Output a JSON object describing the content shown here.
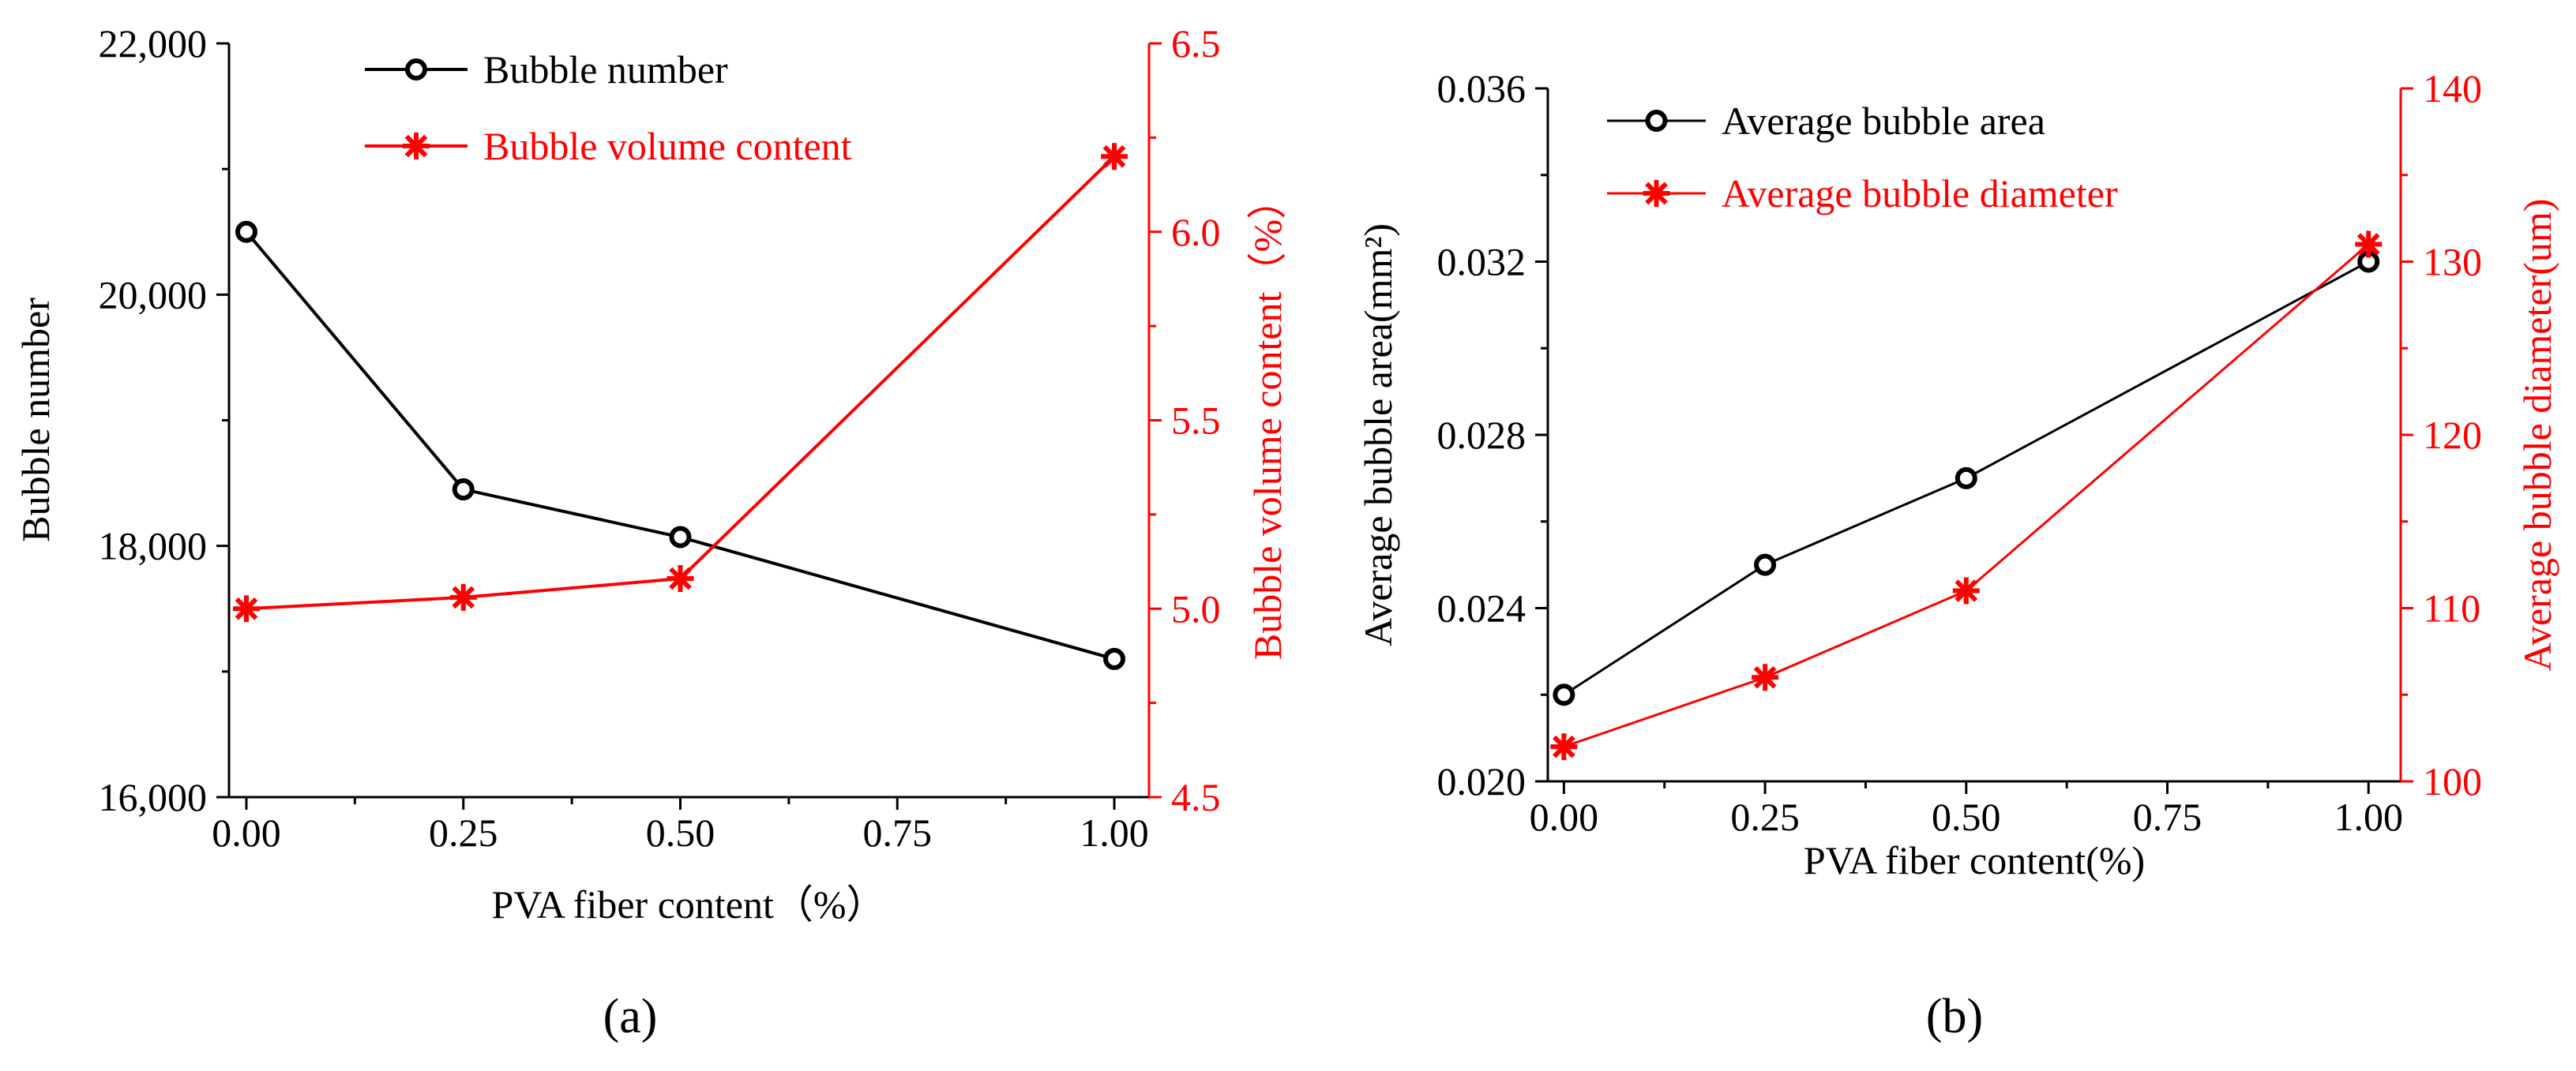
{
  "colors": {
    "left_series": "#000000",
    "right_series": "#ff0000"
  },
  "panels": [
    {
      "label": "(a)",
      "chart_data": {
        "type": "line",
        "x": [
          0,
          0.25,
          0.5,
          1.0
        ],
        "xlabel": "PVA fiber content（%）",
        "xticks": [
          "0.00",
          "0.25",
          "0.50",
          "0.75",
          "1.00"
        ],
        "xlim": [
          -0.02,
          1.04
        ],
        "ylabel_left": "Bubble number",
        "ylim_left": [
          16000,
          22000
        ],
        "yticks_left": [
          "16,000",
          "18,000",
          "20,000",
          "22,000"
        ],
        "ylabel_right": "Bubble volume content（%）",
        "ylim_right": [
          4.5,
          6.5
        ],
        "yticks_right": [
          "4.5",
          "5.0",
          "5.5",
          "6.0",
          "6.5"
        ],
        "legend_position": "top-left",
        "series": [
          {
            "name": "Bubble number",
            "axis": "left",
            "marker": "circle",
            "values": [
              20500,
              18450,
              18070,
              17100
            ]
          },
          {
            "name": "Bubble volume content",
            "axis": "right",
            "marker": "star",
            "values": [
              5.0,
              5.03,
              5.08,
              6.2
            ]
          }
        ]
      }
    },
    {
      "label": "(b)",
      "chart_data": {
        "type": "line",
        "x": [
          0,
          0.25,
          0.5,
          1.0
        ],
        "xlabel": "PVA fiber content(%)",
        "xticks": [
          "0.00",
          "0.25",
          "0.50",
          "0.75",
          "1.00"
        ],
        "xlim": [
          -0.02,
          1.04
        ],
        "ylabel_left": "Average bubble area(mm²)",
        "ylim_left": [
          0.02,
          0.036
        ],
        "yticks_left": [
          "0.020",
          "0.024",
          "0.028",
          "0.032",
          "0.036"
        ],
        "ylabel_right": "Average bubble diameter(um)",
        "ylim_right": [
          100,
          140
        ],
        "yticks_right": [
          "100",
          "110",
          "120",
          "130",
          "140"
        ],
        "legend_position": "top-left",
        "series": [
          {
            "name": "Average bubble area",
            "axis": "left",
            "marker": "circle",
            "values": [
              0.022,
              0.025,
              0.027,
              0.032
            ]
          },
          {
            "name": "Average bubble diameter",
            "axis": "right",
            "marker": "star",
            "values": [
              102,
              106,
              111,
              131
            ]
          }
        ]
      }
    }
  ]
}
